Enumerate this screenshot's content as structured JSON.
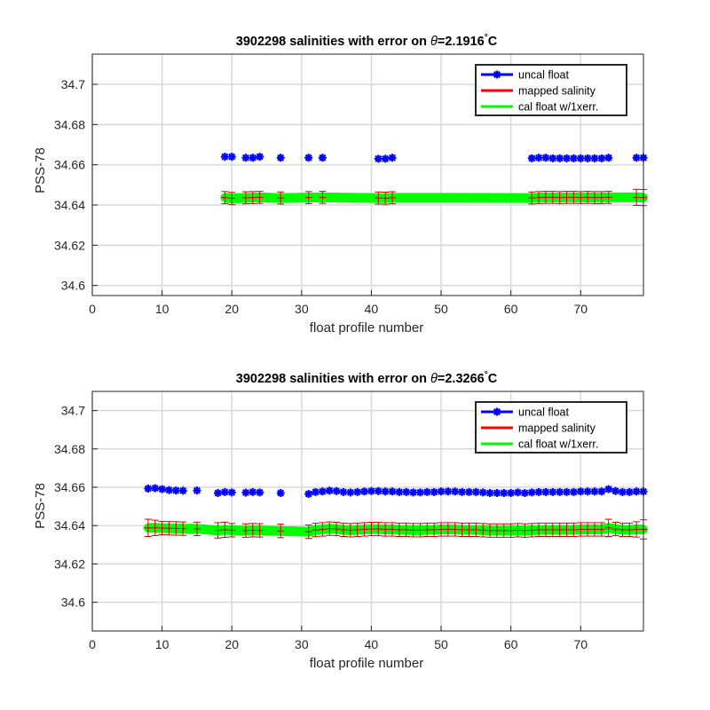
{
  "chart_data": [
    {
      "type": "scatter",
      "title_prefix": "3902298 salinities with error on ",
      "title_theta": "θ",
      "title_value": "=2.1916",
      "title_degree": "°",
      "title_unit": "C",
      "xlabel": "float profile number",
      "ylabel": "PSS-78",
      "xlim": [
        0,
        79
      ],
      "ylim": [
        34.595,
        34.715
      ],
      "xticks": [
        0,
        10,
        20,
        30,
        40,
        50,
        60,
        70
      ],
      "yticks": [
        34.6,
        34.62,
        34.64,
        34.66,
        34.68,
        34.7
      ],
      "ytick_labels": [
        "34.6",
        "34.62",
        "34.64",
        "34.66",
        "34.68",
        "34.7"
      ],
      "grid": true,
      "legend_position": "top-right",
      "legend": [
        {
          "label": "uncal float",
          "color": "#0000ff",
          "marker": true
        },
        {
          "label": "mapped salinity",
          "color": "#ff0000",
          "marker": false
        },
        {
          "label": "cal float w/1xerr.",
          "color": "#00ff00",
          "marker": false
        }
      ],
      "series": [
        {
          "name": "uncal float",
          "color": "#0000ff",
          "x": [
            19,
            20,
            22,
            23,
            24,
            27,
            31,
            33,
            41,
            42,
            43,
            63,
            64,
            65,
            66,
            67,
            68,
            69,
            70,
            71,
            72,
            73,
            74,
            78,
            79
          ],
          "y": [
            34.664,
            34.664,
            34.6635,
            34.6635,
            34.664,
            34.6635,
            34.6635,
            34.6635,
            34.663,
            34.663,
            34.6635,
            34.6632,
            34.6635,
            34.6635,
            34.6632,
            34.6632,
            34.6632,
            34.6632,
            34.6632,
            34.6632,
            34.6632,
            34.6632,
            34.6635,
            34.6635,
            34.6635
          ]
        },
        {
          "name": "cal float w/1xerr.",
          "color": "#00ff00",
          "x": [
            19,
            20,
            22,
            23,
            24,
            27,
            31,
            33,
            41,
            42,
            43,
            63,
            64,
            65,
            66,
            67,
            68,
            69,
            70,
            71,
            72,
            73,
            74,
            78,
            79
          ],
          "y": [
            34.6437,
            34.6433,
            34.6436,
            34.6437,
            34.6438,
            34.6435,
            34.6437,
            34.6438,
            34.6435,
            34.6434,
            34.6436,
            34.6435,
            34.6437,
            34.6438,
            34.6438,
            34.6437,
            34.6438,
            34.6438,
            34.6437,
            34.6438,
            34.6437,
            34.6437,
            34.6438,
            34.6438,
            34.6437
          ],
          "err": [
            0.003,
            0.003,
            0.003,
            0.003,
            0.003,
            0.003,
            0.003,
            0.003,
            0.003,
            0.003,
            0.003,
            0.003,
            0.003,
            0.003,
            0.003,
            0.003,
            0.003,
            0.003,
            0.003,
            0.003,
            0.003,
            0.003,
            0.003,
            0.004,
            0.004
          ]
        }
      ]
    },
    {
      "type": "scatter",
      "title_prefix": "3902298 salinities with error on ",
      "title_theta": "θ",
      "title_value": "=2.3266",
      "title_degree": "°",
      "title_unit": "C",
      "xlabel": "float profile number",
      "ylabel": "PSS-78",
      "xlim": [
        0,
        79
      ],
      "ylim": [
        34.585,
        34.71
      ],
      "xticks": [
        0,
        10,
        20,
        30,
        40,
        50,
        60,
        70
      ],
      "yticks": [
        34.6,
        34.62,
        34.64,
        34.66,
        34.68,
        34.7
      ],
      "ytick_labels": [
        "34.6",
        "34.62",
        "34.64",
        "34.66",
        "34.68",
        "34.7"
      ],
      "grid": true,
      "legend_position": "top-right",
      "legend": [
        {
          "label": "uncal float",
          "color": "#0000ff",
          "marker": true
        },
        {
          "label": "mapped salinity",
          "color": "#ff0000",
          "marker": false
        },
        {
          "label": "cal float w/1xerr.",
          "color": "#00ff00",
          "marker": false
        }
      ],
      "series": [
        {
          "name": "uncal float",
          "color": "#0000ff",
          "x": [
            8,
            9,
            10,
            11,
            12,
            13,
            15,
            18,
            19,
            20,
            22,
            23,
            24,
            27,
            31,
            32,
            33,
            34,
            35,
            36,
            37,
            38,
            39,
            40,
            41,
            42,
            43,
            44,
            45,
            46,
            47,
            48,
            49,
            50,
            51,
            52,
            53,
            54,
            55,
            56,
            57,
            58,
            59,
            60,
            61,
            62,
            63,
            64,
            65,
            66,
            67,
            68,
            69,
            70,
            71,
            72,
            73,
            74,
            75,
            76,
            77,
            78,
            79
          ],
          "y": [
            34.6593,
            34.6595,
            34.659,
            34.6585,
            34.6583,
            34.6582,
            34.6583,
            34.657,
            34.6575,
            34.6573,
            34.6572,
            34.6575,
            34.6573,
            34.657,
            34.6565,
            34.6575,
            34.6578,
            34.6582,
            34.658,
            34.6575,
            34.6573,
            34.6575,
            34.6578,
            34.658,
            34.658,
            34.6578,
            34.6578,
            34.6575,
            34.6575,
            34.6573,
            34.6573,
            34.6575,
            34.6575,
            34.6578,
            34.6578,
            34.6578,
            34.6575,
            34.6575,
            34.6575,
            34.6573,
            34.657,
            34.657,
            34.657,
            34.657,
            34.6573,
            34.657,
            34.6573,
            34.6575,
            34.6575,
            34.6575,
            34.6575,
            34.6575,
            34.6575,
            34.6578,
            34.6578,
            34.6578,
            34.6578,
            34.659,
            34.658,
            34.6575,
            34.6575,
            34.6578,
            34.6578
          ]
        },
        {
          "name": "cal float w/1xerr.",
          "color": "#00ff00",
          "x": [
            8,
            9,
            10,
            11,
            12,
            13,
            15,
            18,
            19,
            20,
            22,
            23,
            24,
            27,
            31,
            32,
            33,
            34,
            35,
            36,
            37,
            38,
            39,
            40,
            41,
            42,
            43,
            44,
            45,
            46,
            47,
            48,
            49,
            50,
            51,
            52,
            53,
            54,
            55,
            56,
            57,
            58,
            59,
            60,
            61,
            62,
            63,
            64,
            65,
            66,
            67,
            68,
            69,
            70,
            71,
            72,
            73,
            74,
            75,
            76,
            77,
            78,
            79
          ],
          "y": [
            34.6388,
            34.6388,
            34.6387,
            34.6386,
            34.6385,
            34.6384,
            34.6383,
            34.6375,
            34.6378,
            34.6376,
            34.6374,
            34.6376,
            34.6375,
            34.6372,
            34.6368,
            34.6377,
            34.638,
            34.6384,
            34.6382,
            34.6378,
            34.6376,
            34.6378,
            34.638,
            34.6382,
            34.6382,
            34.638,
            34.638,
            34.6378,
            34.6378,
            34.6376,
            34.6376,
            34.6378,
            34.6378,
            34.638,
            34.638,
            34.638,
            34.6378,
            34.6378,
            34.6378,
            34.6376,
            34.6374,
            34.6374,
            34.6374,
            34.6374,
            34.6376,
            34.6374,
            34.6376,
            34.6378,
            34.6378,
            34.6378,
            34.6378,
            34.6378,
            34.6378,
            34.638,
            34.638,
            34.638,
            34.638,
            34.6388,
            34.6382,
            34.6378,
            34.6378,
            34.638,
            34.638
          ],
          "err": [
            0.0045,
            0.004,
            0.0035,
            0.0035,
            0.0035,
            0.0035,
            0.0035,
            0.004,
            0.004,
            0.0035,
            0.0035,
            0.0035,
            0.0035,
            0.0035,
            0.0035,
            0.0035,
            0.0035,
            0.0035,
            0.0035,
            0.0035,
            0.0035,
            0.0035,
            0.0035,
            0.0035,
            0.0035,
            0.0035,
            0.0035,
            0.0035,
            0.0035,
            0.0035,
            0.0035,
            0.0035,
            0.0035,
            0.0035,
            0.0035,
            0.0035,
            0.0035,
            0.0035,
            0.0035,
            0.0035,
            0.0035,
            0.0035,
            0.0035,
            0.0035,
            0.0035,
            0.0035,
            0.0035,
            0.0035,
            0.0035,
            0.0035,
            0.0035,
            0.0035,
            0.0035,
            0.0035,
            0.0035,
            0.0035,
            0.0035,
            0.0045,
            0.0035,
            0.0035,
            0.0035,
            0.004,
            0.005
          ]
        }
      ]
    }
  ]
}
